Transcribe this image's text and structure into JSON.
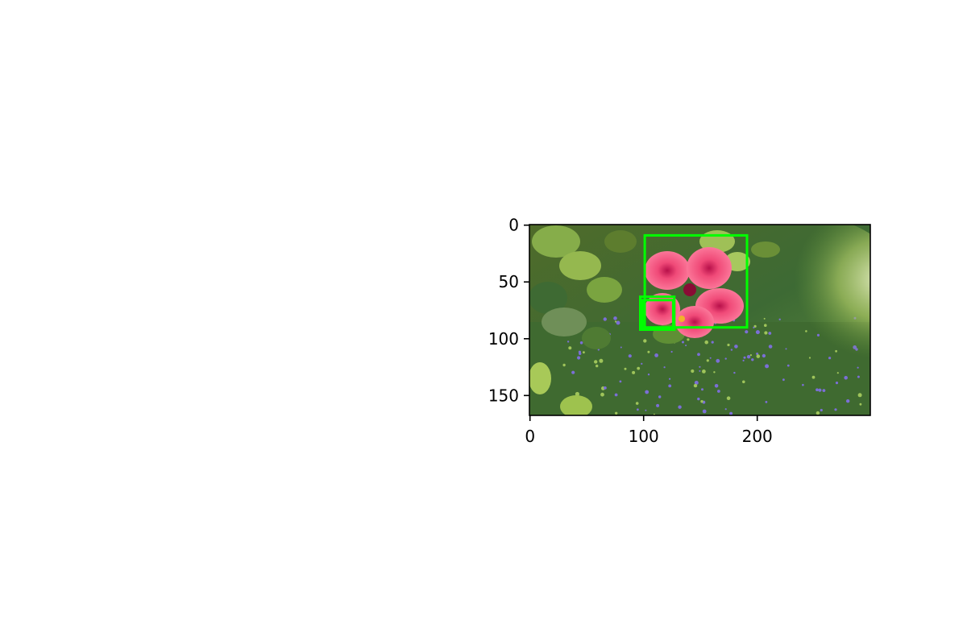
{
  "chart_data": {
    "type": "image",
    "title": "",
    "xlabel": "",
    "ylabel": "",
    "image_extent": {
      "width": 300,
      "height": 168
    },
    "xlim": [
      -0.5,
      299.5
    ],
    "ylim": [
      167.5,
      -0.5
    ],
    "y_inverted": true,
    "x_ticks": [
      0,
      100,
      200
    ],
    "y_ticks": [
      0,
      50,
      100,
      150
    ],
    "box_color": "#00ff00",
    "boxes": [
      {
        "x0": 101,
        "y0": 9,
        "x1": 191,
        "y1": 90
      },
      {
        "x0": 97,
        "y0": 63,
        "x1": 127,
        "y1": 92
      },
      {
        "x0": 99,
        "y0": 66,
        "x1": 126,
        "y1": 91
      }
    ]
  }
}
